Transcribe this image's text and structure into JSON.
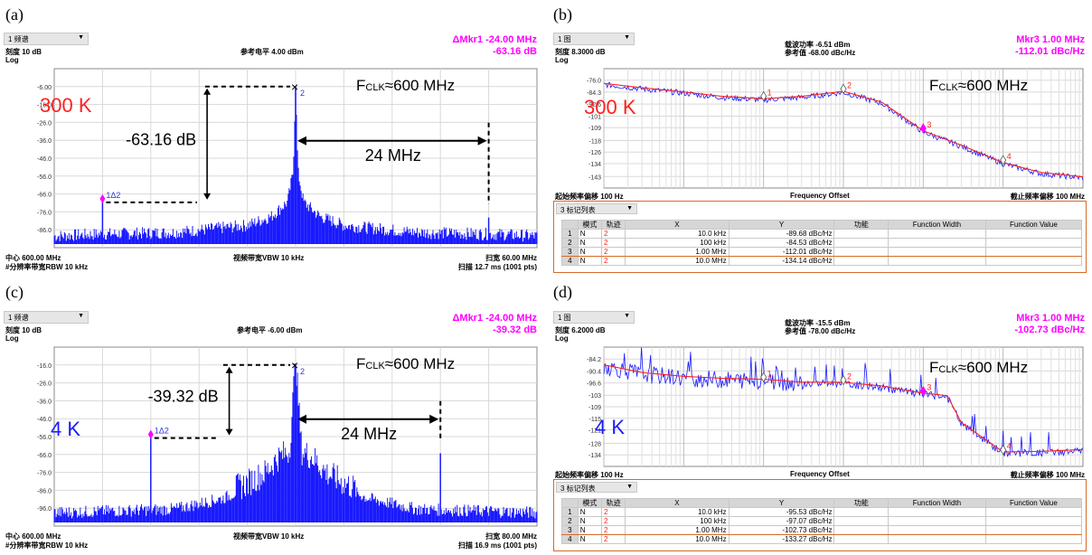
{
  "panel_labels": [
    "(a)",
    "(b)",
    "(c)",
    "(d)"
  ],
  "panels": {
    "a": {
      "dropdown": "1 频谱",
      "scale": "刻度 10 dB",
      "ref": "参考电平 4.00 dBm",
      "log": "Log",
      "marker_title": "ΔMkr1  -24.00 MHz",
      "marker_value": "-63.16 dB",
      "center": "中心 600.00 MHz",
      "rbw": "#分辨率带宽RBW 10 kHz",
      "vbw": "视频带宽VBW 10 kHz",
      "span": "扫宽 60.00 MHz",
      "sweep": "扫描 12.7 ms (1001 pts)",
      "temp": "300 K",
      "fclk_prefix": "F",
      "fclk_sub": "CLK",
      "fclk_suffix": "≈600 MHz",
      "delta_db": "-63.16 dB",
      "delta_mhz": "24 MHz",
      "marker1": "1Δ2",
      "marker2": "2"
    },
    "b": {
      "dropdown": "1 图",
      "scale": "刻度 8.3000 dB",
      "carrier": "载波功率 -6.51 dBm",
      "ref": "参考值 -68.00 dBc/Hz",
      "log": "Log",
      "marker_title": "Mkr3  1.00 MHz",
      "marker_value": "-112.01 dBc/Hz",
      "start": "起始频率偏移 100 Hz",
      "xlabel": "Frequency Offset",
      "stop": "截止频率偏移 100 MHz",
      "temp": "300 K",
      "fclk_prefix": "F",
      "fclk_sub": "CLK",
      "fclk_suffix": "≈600 MHz",
      "table_dropdown": "3 标记列表",
      "table_headers": [
        "",
        "模式",
        "轨迹",
        "X",
        "Y",
        "功能",
        "Function Width",
        "Function Value"
      ],
      "rows": [
        [
          "1",
          "N",
          "2",
          "10.0 kHz",
          "-89.68 dBc/Hz",
          "",
          "",
          ""
        ],
        [
          "2",
          "N",
          "2",
          "100 kHz",
          "-84.53 dBc/Hz",
          "",
          "",
          ""
        ],
        [
          "3",
          "N",
          "2",
          "1.00 MHz",
          "-112.01 dBc/Hz",
          "",
          "",
          ""
        ],
        [
          "4",
          "N",
          "2",
          "10.0 MHz",
          "-134.14 dBc/Hz",
          "",
          "",
          ""
        ]
      ],
      "mk": [
        "1",
        "2",
        "3",
        "4"
      ]
    },
    "c": {
      "dropdown": "1 频谱",
      "scale": "刻度 10 dB",
      "ref": "参考电平 -6.00 dBm",
      "log": "Log",
      "marker_title": "ΔMkr1  -24.00 MHz",
      "marker_value": "-39.32 dB",
      "center": "中心 600.00 MHz",
      "rbw": "#分辨率带宽RBW 10 kHz",
      "vbw": "视频带宽VBW 10 kHz",
      "span": "扫宽 80.00 MHz",
      "sweep": "扫描 16.9 ms (1001 pts)",
      "temp": "4 K",
      "fclk_prefix": "F",
      "fclk_sub": "CLK",
      "fclk_suffix": "≈600 MHz",
      "delta_db": "-39.32 dB",
      "delta_mhz": "24 MHz",
      "marker1": "1Δ2",
      "marker2": "2"
    },
    "d": {
      "dropdown": "1 图",
      "scale": "刻度 6.2000 dB",
      "carrier": "载波功率 -15.5 dBm",
      "ref": "参考值 -78.00 dBc/Hz",
      "log": "Log",
      "marker_title": "Mkr3  1.00 MHz",
      "marker_value": "-102.73 dBc/Hz",
      "start": "起始频率偏移 100 Hz",
      "xlabel": "Frequency Offset",
      "stop": "截止频率偏移 100 MHz",
      "temp": "4 K",
      "fclk_prefix": "F",
      "fclk_sub": "CLK",
      "fclk_suffix": "≈600 MHz",
      "table_dropdown": "3 标记列表",
      "table_headers": [
        "",
        "模式",
        "轨迹",
        "X",
        "Y",
        "功能",
        "Function Width",
        "Function Value"
      ],
      "rows": [
        [
          "1",
          "N",
          "2",
          "10.0 kHz",
          "-95.53 dBc/Hz",
          "",
          "",
          ""
        ],
        [
          "2",
          "N",
          "2",
          "100 kHz",
          "-97.07 dBc/Hz",
          "",
          "",
          ""
        ],
        [
          "3",
          "N",
          "2",
          "1.00 MHz",
          "-102.73 dBc/Hz",
          "",
          "",
          ""
        ],
        [
          "4",
          "N",
          "2",
          "10.0 MHz",
          "-133.27 dBc/Hz",
          "",
          "",
          ""
        ]
      ],
      "mk": [
        "1",
        "2",
        "3",
        "4"
      ]
    }
  },
  "colors": {
    "trace": "#1a1aff",
    "smooth": "#ff2020",
    "marker": "#ff00ff",
    "temp_300": "#ff2020",
    "temp_4": "#1a1aff",
    "highlight": "#d46a2a"
  },
  "chart_data": [
    {
      "type": "line",
      "panel": "a",
      "xlabel": "",
      "ylabel": "",
      "x_center_mhz": 600,
      "x_span_mhz": 60,
      "xlim": [
        570,
        630
      ],
      "yticks": [
        "-6.00",
        "-16.0",
        "-26.0",
        "-36.0",
        "-46.0",
        "-56.0",
        "-66.0",
        "-76.0",
        "-86.0"
      ],
      "ylim": [
        -96,
        4
      ],
      "series": [
        {
          "x": [
            570,
            575,
            585,
            594,
            597,
            599,
            599.7,
            600,
            600.3,
            601,
            603,
            606,
            615,
            625,
            630
          ],
          "y": [
            -91,
            -90,
            -89,
            -85,
            -80,
            -72,
            -55,
            -6,
            -55,
            -72,
            -80,
            -85,
            -89,
            -90,
            -91
          ]
        }
      ],
      "markers": [
        {
          "label": "1Δ2",
          "x": 576,
          "y": -69.2
        },
        {
          "label": "2",
          "x": 600,
          "y": -6
        }
      ],
      "spurs_mhz": [
        576,
        624
      ],
      "spur_dbm": -69.2
    },
    {
      "type": "line",
      "panel": "b",
      "xscale": "log",
      "xlim_hz": [
        100,
        100000000
      ],
      "yticks": [
        "-76.0",
        "-84.3",
        "-92.6",
        "-101",
        "-109",
        "-118",
        "-126",
        "-134",
        "-143"
      ],
      "ylim": [
        -151,
        -68
      ],
      "series": [
        {
          "x_hz": [
            100,
            300,
            1000,
            3000,
            10000,
            30000,
            100000,
            300000,
            1000000,
            3000000,
            10000000,
            30000000,
            100000000
          ],
          "y": [
            -79,
            -82,
            -85,
            -88,
            -89.68,
            -88,
            -84.53,
            -92,
            -112.01,
            -122,
            -134.14,
            -141,
            -144
          ]
        }
      ],
      "markers": [
        {
          "label": "1",
          "x_hz": 10000,
          "y": -89.68
        },
        {
          "label": "2",
          "x_hz": 100000,
          "y": -84.53
        },
        {
          "label": "3",
          "x_hz": 1000000,
          "y": -112.01
        },
        {
          "label": "4",
          "x_hz": 10000000,
          "y": -134.14
        }
      ]
    },
    {
      "type": "line",
      "panel": "c",
      "x_center_mhz": 600,
      "x_span_mhz": 80,
      "xlim": [
        560,
        640
      ],
      "yticks": [
        "-16.0",
        "-26.0",
        "-36.0",
        "-46.0",
        "-56.0",
        "-66.0",
        "-76.0",
        "-86.0",
        "-96.0"
      ],
      "ylim": [
        -106,
        -6
      ],
      "series": [
        {
          "x": [
            560,
            570,
            580,
            588,
            592,
            595,
            597,
            599,
            600,
            601,
            603,
            605,
            608,
            612,
            620,
            630,
            640
          ],
          "y": [
            -100,
            -99,
            -98,
            -92,
            -86,
            -80,
            -72,
            -68,
            -16,
            -68,
            -72,
            -80,
            -86,
            -92,
            -98,
            -99,
            -100
          ]
        }
      ],
      "markers": [
        {
          "label": "1Δ2",
          "x": 576,
          "y": -55.32
        },
        {
          "label": "2",
          "x": 600,
          "y": -16
        }
      ],
      "spurs_mhz": [
        576,
        624
      ],
      "spur_dbm": -55.32
    },
    {
      "type": "line",
      "panel": "d",
      "xscale": "log",
      "xlim_hz": [
        100,
        100000000
      ],
      "yticks": [
        "-84.2",
        "-90.4",
        "-96.6",
        "-103",
        "-109",
        "-115",
        "-121",
        "-128",
        "-134"
      ],
      "ylim": [
        -140,
        -78
      ],
      "series": [
        {
          "x_hz": [
            100,
            300,
            1000,
            3000,
            10000,
            30000,
            100000,
            300000,
            1000000,
            2000000,
            3000000,
            10000000,
            30000000,
            100000000
          ],
          "y": [
            -88,
            -92,
            -94,
            -95,
            -95.53,
            -97,
            -97.07,
            -99,
            -102.73,
            -104,
            -118,
            -133.27,
            -133,
            -132
          ]
        }
      ],
      "markers": [
        {
          "label": "1",
          "x_hz": 10000,
          "y": -95.53
        },
        {
          "label": "2",
          "x_hz": 100000,
          "y": -97.07
        },
        {
          "label": "3",
          "x_hz": 1000000,
          "y": -102.73
        },
        {
          "label": "4",
          "x_hz": 10000000,
          "y": -133.27
        }
      ]
    }
  ]
}
